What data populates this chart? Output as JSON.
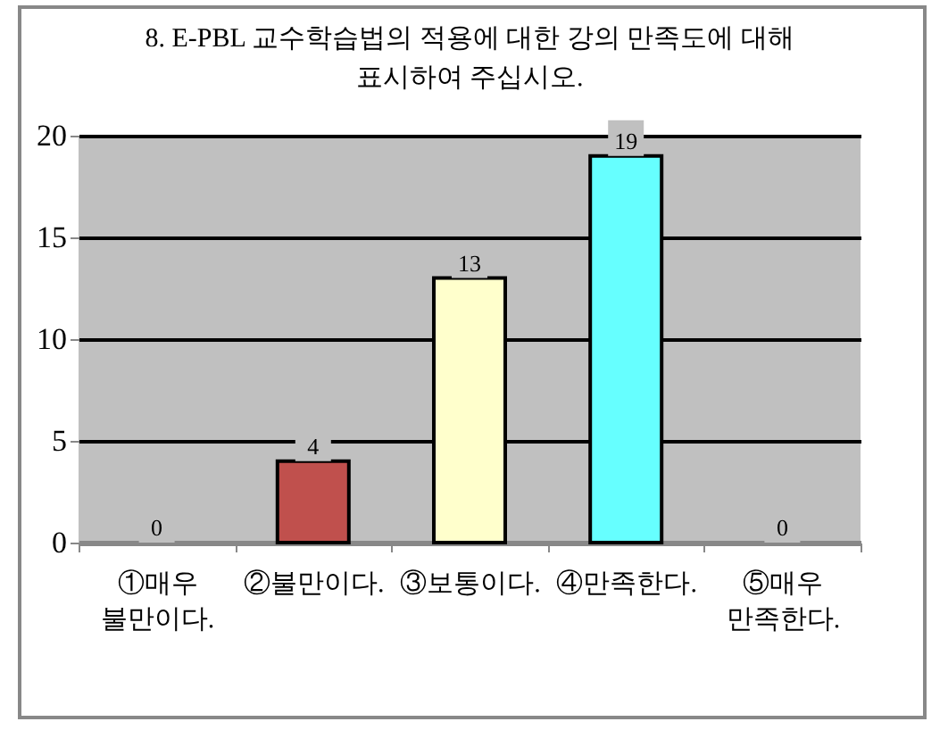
{
  "chart_data": {
    "type": "bar",
    "title": [
      "8. E-PBL 교수학습법의 적용에 대한 강의 만족도에 대해",
      "표시하여 주십시오."
    ],
    "categories": [
      "①매우 불만이다.",
      "②불만이다.",
      "③보통이다.",
      "④만족한다.",
      "⑤매우 만족한다."
    ],
    "values": [
      0,
      4,
      13,
      19,
      0
    ],
    "colors": [
      null,
      "#c0504d",
      "#ffffcc",
      "#66ffff",
      null
    ],
    "ylim": [
      0,
      20
    ],
    "yticks": [
      0,
      5,
      10,
      15,
      20
    ],
    "grid": "y",
    "data_labels": true
  }
}
